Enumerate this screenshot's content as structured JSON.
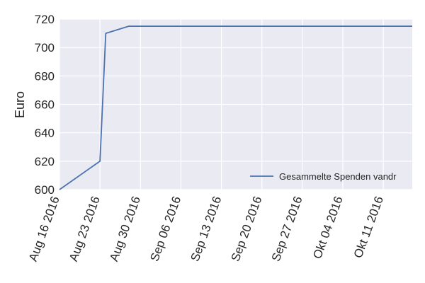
{
  "chart_data": {
    "type": "line",
    "title": "",
    "xlabel": "",
    "ylabel": "Euro",
    "ylim": [
      600,
      720
    ],
    "xlim": [
      "2016-08-16",
      "2016-10-16"
    ],
    "yticks": [
      600,
      620,
      640,
      660,
      680,
      700,
      720
    ],
    "xticks": [
      {
        "date": "2016-08-16",
        "label": "Aug 16 2016"
      },
      {
        "date": "2016-08-23",
        "label": "Aug 23 2016"
      },
      {
        "date": "2016-08-30",
        "label": "Aug 30 2016"
      },
      {
        "date": "2016-09-06",
        "label": "Sep 06 2016"
      },
      {
        "date": "2016-09-13",
        "label": "Sep 13 2016"
      },
      {
        "date": "2016-09-20",
        "label": "Sep 20 2016"
      },
      {
        "date": "2016-09-27",
        "label": "Sep 27 2016"
      },
      {
        "date": "2016-10-04",
        "label": "Okt 04 2016"
      },
      {
        "date": "2016-10-11",
        "label": "Okt 11 2016"
      }
    ],
    "grid": true,
    "legend_position": "bottom-right",
    "series": [
      {
        "name": "Gesammelte Spenden vandr",
        "color": "#4c72b0",
        "points": [
          {
            "x": "2016-08-16",
            "y": 600
          },
          {
            "x": "2016-08-23",
            "y": 620
          },
          {
            "x": "2016-08-24",
            "y": 710
          },
          {
            "x": "2016-08-28",
            "y": 715
          },
          {
            "x": "2016-10-16",
            "y": 715
          }
        ]
      }
    ]
  }
}
